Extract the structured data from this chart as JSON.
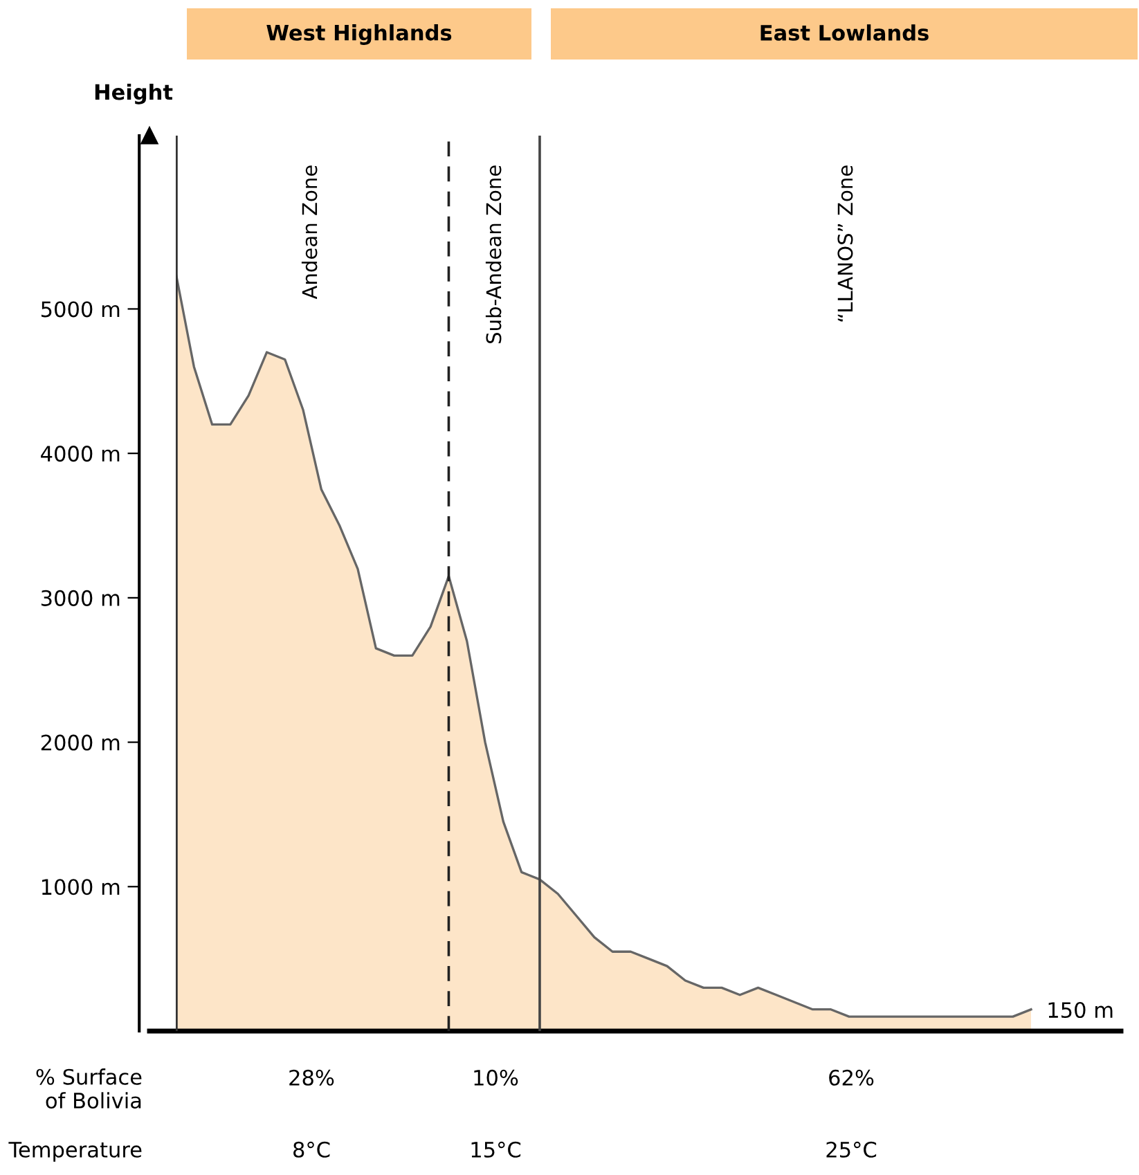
{
  "chart_data": {
    "type": "area",
    "ylabel": "Height",
    "categories": [
      null,
      null,
      null,
      null,
      null,
      null,
      null,
      null,
      null,
      null,
      null,
      null,
      null,
      null,
      null,
      null,
      null,
      null,
      null,
      null,
      null,
      null,
      null,
      null,
      null,
      null,
      null,
      null,
      null,
      null,
      null,
      null,
      null,
      null,
      null,
      null,
      null,
      null,
      null,
      null,
      null,
      null,
      null,
      null,
      null,
      null,
      null,
      null
    ],
    "series": [
      {
        "color": "#fde5c8",
        "values": [
          5250,
          4600,
          4200,
          4200,
          4400,
          4700,
          4650,
          4300,
          3750,
          3500,
          3200,
          2650,
          2600,
          2600,
          2800,
          3150,
          2700,
          2000,
          1450,
          1100,
          1050,
          950,
          800,
          650,
          550,
          550,
          500,
          450,
          350,
          300,
          300,
          250,
          300,
          250,
          200,
          150,
          150,
          100,
          100,
          100,
          100,
          100,
          100,
          100,
          100,
          100,
          100,
          150
        ]
      }
    ],
    "ylim": [
      0,
      6200
    ],
    "yticks": [
      {
        "value": 1000,
        "label": "1000 m"
      },
      {
        "value": 2000,
        "label": "2000 m"
      },
      {
        "value": 3000,
        "label": "3000 m"
      },
      {
        "value": 4000,
        "label": "4000 m"
      },
      {
        "value": 5000,
        "label": "5000 m"
      }
    ],
    "annotations": [
      "West Highlands",
      "East Lowlands",
      "Andean Zone",
      "Sub-Andean Zone",
      "“LLANOS” Zone",
      "% Surface\nof Bolivia",
      "28%",
      "10%",
      "62%",
      "Temperature",
      "8°C",
      "15°C",
      "25°C",
      "150 m"
    ],
    "tick_labels": "y",
    "grid": false
  }
}
